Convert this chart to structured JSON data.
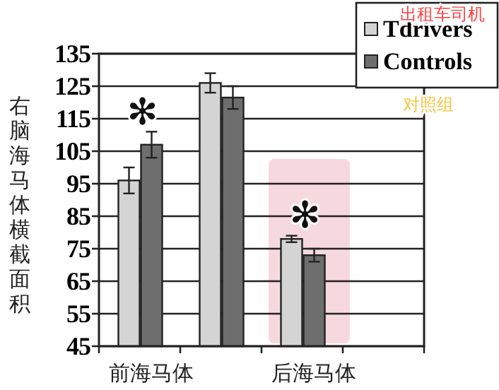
{
  "chart_data": {
    "type": "bar",
    "ylabel": "右脑海马体横截面积",
    "categories": [
      "前海马体",
      null,
      "后海马体",
      null
    ],
    "series": [
      {
        "name": "Tdrivers",
        "color": "#d4d4d4",
        "values": [
          96,
          126,
          78,
          null
        ],
        "errors": [
          4,
          3,
          1,
          null
        ]
      },
      {
        "name": "Controls",
        "color": "#6e6e6e",
        "values": [
          107,
          121.5,
          73,
          null
        ],
        "errors": [
          4,
          3.5,
          2,
          null
        ]
      }
    ],
    "ylim": [
      45,
      135
    ],
    "yticks": [
      45,
      55,
      65,
      75,
      85,
      95,
      105,
      115,
      125,
      135
    ],
    "grid": "y",
    "legend": "top right",
    "bands": [
      {
        "axis": "x",
        "from": "后海马体",
        "to": "后海马体",
        "color": "#f6d9de"
      }
    ],
    "annotations": [
      "✻",
      "✻",
      "出租车司机",
      "对照组"
    ]
  }
}
